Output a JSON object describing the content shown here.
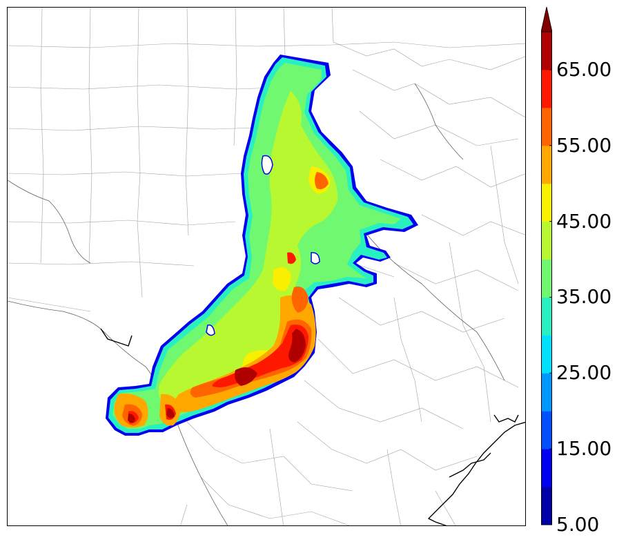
{
  "colorbar": {
    "min": 5,
    "max": 70,
    "step": 5,
    "extend": "max",
    "tick_values": [
      5,
      15,
      25,
      35,
      45,
      55,
      65
    ],
    "tick_labels": [
      "5.00",
      "15.00",
      "25.00",
      "35.00",
      "45.00",
      "55.00",
      "65.00"
    ],
    "colors": [
      "#0000a8",
      "#0000f0",
      "#0050ff",
      "#0098ff",
      "#00e0ff",
      "#28f0c0",
      "#70f870",
      "#b8f830",
      "#f8f000",
      "#ffa800",
      "#ff6400",
      "#ff1800",
      "#b00000"
    ],
    "arrow_color": "#800000"
  },
  "map": {
    "description_colors": {
      "county_lines": "#9a9a9a",
      "coastline": "#000000",
      "rivers": "#555555"
    }
  }
}
